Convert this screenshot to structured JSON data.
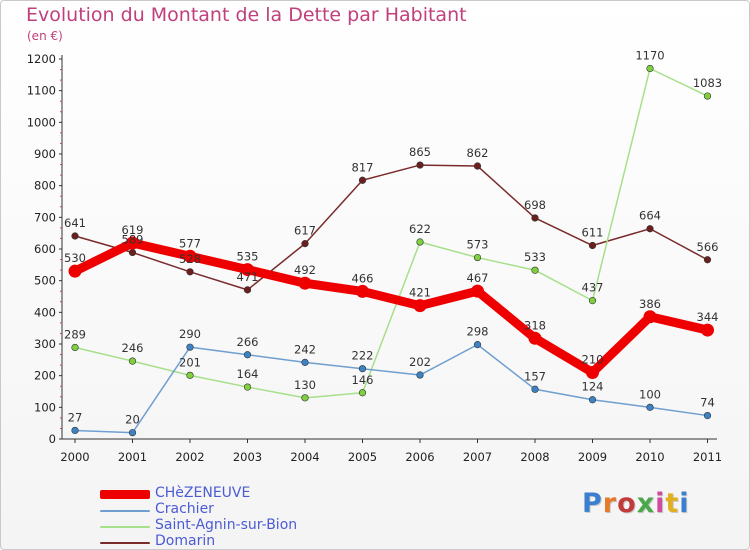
{
  "header": {
    "title": "Evolution du Montant de la Dette par Habitant",
    "subtitle": "(en €)"
  },
  "brand": {
    "logo_text": "Proxiti",
    "letter_colors": [
      "#3b7fd0",
      "#e8782a",
      "#c23a3a",
      "#4aa84a",
      "#d04aa0",
      "#e0b020",
      "#3b7fd0"
    ]
  },
  "chart_data": {
    "type": "line",
    "title": "Evolution du Montant de la Dette par Habitant",
    "subtitle": "(en €)",
    "xlabel": "",
    "ylabel": "",
    "x": [
      "2000",
      "2001",
      "2002",
      "2003",
      "2004",
      "2005",
      "2006",
      "2007",
      "2008",
      "2009",
      "2010",
      "2011"
    ],
    "ylim": [
      0,
      1200
    ],
    "yticks": [
      0,
      100,
      200,
      300,
      400,
      500,
      600,
      700,
      800,
      900,
      1000,
      1100,
      1200
    ],
    "grid": false,
    "legend_position": "bottom-left",
    "series": [
      {
        "name": "Domarin",
        "color": "#7a2b2b",
        "marker": "#6b1f1f",
        "values": [
          641,
          589,
          528,
          471,
          617,
          817,
          865,
          862,
          698,
          611,
          664,
          566
        ],
        "labels": [
          "641",
          "589",
          "528",
          "471",
          "617",
          "817",
          "865",
          "862",
          "698",
          "611",
          "664",
          "566"
        ]
      },
      {
        "name": "Saint-Agnin-sur-Bion",
        "color": "#a6e08a",
        "marker": "#7fcf3f",
        "values": [
          289,
          246,
          201,
          164,
          130,
          146,
          622,
          573,
          533,
          437,
          1170,
          1083
        ],
        "labels": [
          "289",
          "246",
          "201",
          "164",
          "130",
          "146",
          "622",
          "573",
          "533",
          "437",
          "1170",
          "1083"
        ]
      },
      {
        "name": "Crachier",
        "color": "#6f9fcf",
        "marker": "#3c82c4",
        "values": [
          27,
          20,
          290,
          266,
          242,
          222,
          202,
          298,
          157,
          124,
          100,
          74
        ],
        "labels": [
          "27",
          "20",
          "290",
          "266",
          "242",
          "222",
          "202",
          "298",
          "157",
          "124",
          "100",
          "74"
        ]
      },
      {
        "name": "CHèZENEUVE",
        "color": "#ee0000",
        "marker": "#ee0000",
        "values": [
          530,
          619,
          577,
          535,
          492,
          466,
          421,
          467,
          318,
          210,
          386,
          344
        ],
        "labels": [
          "530",
          "619",
          "577",
          "535",
          "492",
          "466",
          "421",
          "467",
          "318",
          "210",
          "386",
          "344"
        ]
      }
    ],
    "legend_order": [
      "CHèZENEUVE",
      "Crachier",
      "Saint-Agnin-sur-Bion",
      "Domarin"
    ]
  }
}
